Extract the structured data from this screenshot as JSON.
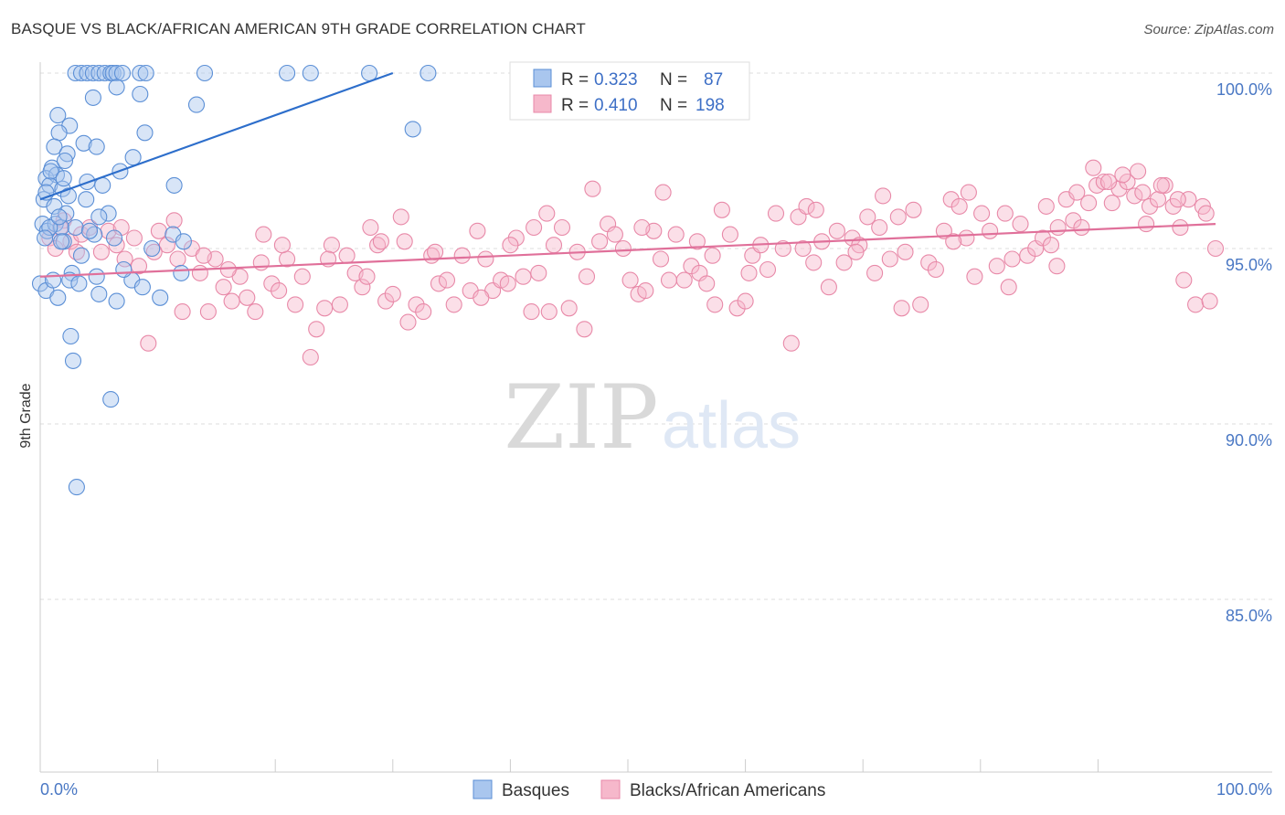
{
  "title": "BASQUE VS BLACK/AFRICAN AMERICAN 9TH GRADE CORRELATION CHART",
  "source": "Source: ZipAtlas.com",
  "watermark": {
    "zip": "ZIP",
    "atlas": "atlas"
  },
  "colors": {
    "basque_fill": "#a9c6ee",
    "basque_stroke": "#5b8fd6",
    "basque_line": "#2d6ecb",
    "black_fill": "#f6b8cb",
    "black_stroke": "#e889a8",
    "black_line": "#e0709a",
    "tick_label": "#4a78c4",
    "grid": "#dddddd"
  },
  "legend": {
    "rows": [
      {
        "r_label": "R = ",
        "r_value": "0.323",
        "n_label": "N = ",
        "n_value": "87"
      },
      {
        "r_label": "R = ",
        "r_value": "0.410",
        "n_label": "N = ",
        "n_value": "198"
      }
    ]
  },
  "chart_data": {
    "type": "scatter",
    "title": "BASQUE VS BLACK/AFRICAN AMERICAN 9TH GRADE CORRELATION CHART",
    "xlabel": "",
    "ylabel": "9th Grade",
    "xlim": [
      0,
      100
    ],
    "ylim": [
      80,
      100.5
    ],
    "x_tick_labels": [
      "0.0%",
      "100.0%"
    ],
    "y_ticks": [
      {
        "value": 100,
        "label": "100.0%"
      },
      {
        "value": 95,
        "label": "95.0%"
      },
      {
        "value": 90,
        "label": "90.0%"
      },
      {
        "value": 85,
        "label": "85.0%"
      }
    ],
    "grid": "horizontal dashed",
    "legend_placement": "top-center",
    "series": [
      {
        "name": "Basques",
        "r": 0.323,
        "n": 87,
        "trend": {
          "x": [
            0,
            30
          ],
          "y": [
            96.4,
            100.0
          ]
        },
        "points": [
          [
            3,
            100
          ],
          [
            3.5,
            100
          ],
          [
            4,
            100
          ],
          [
            4.5,
            100
          ],
          [
            5,
            100
          ],
          [
            5.5,
            100
          ],
          [
            6,
            100
          ],
          [
            6.2,
            100
          ],
          [
            6.5,
            100
          ],
          [
            7,
            100
          ],
          [
            8.5,
            100
          ],
          [
            9,
            100
          ],
          [
            14,
            100
          ],
          [
            21,
            100
          ],
          [
            23,
            100
          ],
          [
            28,
            100
          ],
          [
            33,
            100
          ],
          [
            1.5,
            98.8
          ],
          [
            2.5,
            98.5
          ],
          [
            4.5,
            99.3
          ],
          [
            6.5,
            99.6
          ],
          [
            8.5,
            99.4
          ],
          [
            13.3,
            99.1
          ],
          [
            1.6,
            98.3
          ],
          [
            3.7,
            98.0
          ],
          [
            8.9,
            98.3
          ],
          [
            31.7,
            98.4
          ],
          [
            1.2,
            97.9
          ],
          [
            2.3,
            97.7
          ],
          [
            4.8,
            97.9
          ],
          [
            7.9,
            97.6
          ],
          [
            1.0,
            97.3
          ],
          [
            2.1,
            97.5
          ],
          [
            0.5,
            97.0
          ],
          [
            1.4,
            97.1
          ],
          [
            0.8,
            96.8
          ],
          [
            1.9,
            96.7
          ],
          [
            2.4,
            96.5
          ],
          [
            5.3,
            96.8
          ],
          [
            11.4,
            96.8
          ],
          [
            0.3,
            96.4
          ],
          [
            1.2,
            96.2
          ],
          [
            5.8,
            96.0
          ],
          [
            0.2,
            95.7
          ],
          [
            0.6,
            95.5
          ],
          [
            1.3,
            95.7
          ],
          [
            1.8,
            95.6
          ],
          [
            4.6,
            95.4
          ],
          [
            11.3,
            95.4
          ],
          [
            2.0,
            95.2
          ],
          [
            0.8,
            95.6
          ],
          [
            3.0,
            95.6
          ],
          [
            1.8,
            95.2
          ],
          [
            0.4,
            95.3
          ],
          [
            12.2,
            95.2
          ],
          [
            2.7,
            94.3
          ],
          [
            4.8,
            94.2
          ],
          [
            2.5,
            94.1
          ],
          [
            3.3,
            94.0
          ],
          [
            7.8,
            94.1
          ],
          [
            8.7,
            93.9
          ],
          [
            12.0,
            94.3
          ],
          [
            0,
            94.0
          ],
          [
            0.5,
            93.8
          ],
          [
            1.5,
            93.6
          ],
          [
            5.0,
            93.7
          ],
          [
            6.5,
            93.5
          ],
          [
            10.2,
            93.6
          ],
          [
            2.6,
            92.5
          ],
          [
            2.8,
            91.8
          ],
          [
            6.0,
            90.7
          ],
          [
            3.1,
            88.2
          ],
          [
            3.9,
            96.4
          ],
          [
            2.2,
            96.0
          ],
          [
            5.0,
            95.9
          ],
          [
            0.9,
            97.2
          ],
          [
            4.0,
            96.9
          ],
          [
            6.3,
            95.3
          ],
          [
            9.5,
            95.0
          ],
          [
            1.1,
            94.1
          ],
          [
            7.1,
            94.4
          ],
          [
            3.5,
            94.8
          ],
          [
            2.0,
            97.0
          ],
          [
            4.2,
            95.5
          ],
          [
            1.6,
            95.9
          ],
          [
            0.5,
            96.6
          ],
          [
            6.8,
            97.2
          ]
        ]
      },
      {
        "name": "Blacks/African Americans",
        "r": 0.41,
        "n": 198,
        "trend": {
          "x": [
            0,
            100
          ],
          "y": [
            94.2,
            95.7
          ]
        },
        "points": [
          [
            0.8,
            95.3
          ],
          [
            1.3,
            95.0
          ],
          [
            2.0,
            95.8
          ],
          [
            2.6,
            95.2
          ],
          [
            3.5,
            95.4
          ],
          [
            4.2,
            95.6
          ],
          [
            5.2,
            94.9
          ],
          [
            5.8,
            95.5
          ],
          [
            6.5,
            95.1
          ],
          [
            7.2,
            94.7
          ],
          [
            8.0,
            95.3
          ],
          [
            8.4,
            94.5
          ],
          [
            9.2,
            92.3
          ],
          [
            10.1,
            95.5
          ],
          [
            10.8,
            95.1
          ],
          [
            11.4,
            95.8
          ],
          [
            12.1,
            93.2
          ],
          [
            12.9,
            95.0
          ],
          [
            13.6,
            94.3
          ],
          [
            14.3,
            93.2
          ],
          [
            14.9,
            94.7
          ],
          [
            15.6,
            93.9
          ],
          [
            16.3,
            93.5
          ],
          [
            17.0,
            94.2
          ],
          [
            17.6,
            93.6
          ],
          [
            18.3,
            93.2
          ],
          [
            19.0,
            95.4
          ],
          [
            19.7,
            94.0
          ],
          [
            20.3,
            93.8
          ],
          [
            21.0,
            94.7
          ],
          [
            21.7,
            93.4
          ],
          [
            22.3,
            94.2
          ],
          [
            23.0,
            91.9
          ],
          [
            23.5,
            92.7
          ],
          [
            24.2,
            93.3
          ],
          [
            24.8,
            95.1
          ],
          [
            25.5,
            93.4
          ],
          [
            26.1,
            94.8
          ],
          [
            26.8,
            94.3
          ],
          [
            27.4,
            93.9
          ],
          [
            28.1,
            95.6
          ],
          [
            28.7,
            95.1
          ],
          [
            29.4,
            93.5
          ],
          [
            30.0,
            93.7
          ],
          [
            30.7,
            95.9
          ],
          [
            31.3,
            92.9
          ],
          [
            32.0,
            93.4
          ],
          [
            32.6,
            93.2
          ],
          [
            33.3,
            94.8
          ],
          [
            33.9,
            94.0
          ],
          [
            34.6,
            94.1
          ],
          [
            35.2,
            93.4
          ],
          [
            35.9,
            94.8
          ],
          [
            36.6,
            93.8
          ],
          [
            37.2,
            95.5
          ],
          [
            37.9,
            94.7
          ],
          [
            38.5,
            93.8
          ],
          [
            39.2,
            94.1
          ],
          [
            39.8,
            94.0
          ],
          [
            40.5,
            95.3
          ],
          [
            41.1,
            94.2
          ],
          [
            41.8,
            93.2
          ],
          [
            42.4,
            94.3
          ],
          [
            43.1,
            96.0
          ],
          [
            43.7,
            95.1
          ],
          [
            44.4,
            95.6
          ],
          [
            45.0,
            93.3
          ],
          [
            45.7,
            94.9
          ],
          [
            46.3,
            92.7
          ],
          [
            47.0,
            96.7
          ],
          [
            47.6,
            95.2
          ],
          [
            48.3,
            95.7
          ],
          [
            48.9,
            95.4
          ],
          [
            49.6,
            95.0
          ],
          [
            50.2,
            94.1
          ],
          [
            50.9,
            93.7
          ],
          [
            51.5,
            93.8
          ],
          [
            52.2,
            95.5
          ],
          [
            52.8,
            94.7
          ],
          [
            53.5,
            94.1
          ],
          [
            54.1,
            95.4
          ],
          [
            54.8,
            94.1
          ],
          [
            55.4,
            94.5
          ],
          [
            56.1,
            94.3
          ],
          [
            56.7,
            94.0
          ],
          [
            57.4,
            93.4
          ],
          [
            58.0,
            96.1
          ],
          [
            58.7,
            95.4
          ],
          [
            59.3,
            93.3
          ],
          [
            60.0,
            93.5
          ],
          [
            60.6,
            94.8
          ],
          [
            61.3,
            95.1
          ],
          [
            61.9,
            94.4
          ],
          [
            62.6,
            96.0
          ],
          [
            63.2,
            95.0
          ],
          [
            63.9,
            92.3
          ],
          [
            64.5,
            95.9
          ],
          [
            65.2,
            96.2
          ],
          [
            65.8,
            94.6
          ],
          [
            66.5,
            95.2
          ],
          [
            67.1,
            93.9
          ],
          [
            67.8,
            95.5
          ],
          [
            68.4,
            94.6
          ],
          [
            69.1,
            95.3
          ],
          [
            69.7,
            95.1
          ],
          [
            70.4,
            95.9
          ],
          [
            71.0,
            94.3
          ],
          [
            71.7,
            96.5
          ],
          [
            72.3,
            94.7
          ],
          [
            73.0,
            95.9
          ],
          [
            73.6,
            94.9
          ],
          [
            74.3,
            96.1
          ],
          [
            74.9,
            93.4
          ],
          [
            75.6,
            94.6
          ],
          [
            76.2,
            94.4
          ],
          [
            76.9,
            95.5
          ],
          [
            77.5,
            96.4
          ],
          [
            78.2,
            96.2
          ],
          [
            78.8,
            95.3
          ],
          [
            79.5,
            94.2
          ],
          [
            80.1,
            96.0
          ],
          [
            80.8,
            95.5
          ],
          [
            81.4,
            94.5
          ],
          [
            82.1,
            96.0
          ],
          [
            82.7,
            94.7
          ],
          [
            83.4,
            95.7
          ],
          [
            84.0,
            94.8
          ],
          [
            84.7,
            95.0
          ],
          [
            85.3,
            95.3
          ],
          [
            86.0,
            95.1
          ],
          [
            86.6,
            95.6
          ],
          [
            87.3,
            96.4
          ],
          [
            87.9,
            95.8
          ],
          [
            88.6,
            95.6
          ],
          [
            89.2,
            96.3
          ],
          [
            89.9,
            96.8
          ],
          [
            90.5,
            96.9
          ],
          [
            91.2,
            96.3
          ],
          [
            91.8,
            96.7
          ],
          [
            92.5,
            96.9
          ],
          [
            93.1,
            96.5
          ],
          [
            93.8,
            96.6
          ],
          [
            94.4,
            96.2
          ],
          [
            95.1,
            96.4
          ],
          [
            95.7,
            96.8
          ],
          [
            96.4,
            96.2
          ],
          [
            97.0,
            95.6
          ],
          [
            97.7,
            96.4
          ],
          [
            98.3,
            93.4
          ],
          [
            98.9,
            96.2
          ],
          [
            99.5,
            93.5
          ],
          [
            100.0,
            95.0
          ],
          [
            1.7,
            95.6
          ],
          [
            6.9,
            95.6
          ],
          [
            11.7,
            94.7
          ],
          [
            16.0,
            94.4
          ],
          [
            20.6,
            95.1
          ],
          [
            24.5,
            94.7
          ],
          [
            29.0,
            95.2
          ],
          [
            33.6,
            94.9
          ],
          [
            37.5,
            93.6
          ],
          [
            42.0,
            95.6
          ],
          [
            46.5,
            94.2
          ],
          [
            51.2,
            95.6
          ],
          [
            55.9,
            95.2
          ],
          [
            60.3,
            94.3
          ],
          [
            64.9,
            95.0
          ],
          [
            69.4,
            94.9
          ],
          [
            73.3,
            93.3
          ],
          [
            77.7,
            95.2
          ],
          [
            82.4,
            93.9
          ],
          [
            86.5,
            94.5
          ],
          [
            90.9,
            96.9
          ],
          [
            94.1,
            95.7
          ],
          [
            97.3,
            94.1
          ],
          [
            99.2,
            96.0
          ],
          [
            13.9,
            94.8
          ],
          [
            27.8,
            94.2
          ],
          [
            43.3,
            93.2
          ],
          [
            57.2,
            94.8
          ],
          [
            71.4,
            95.6
          ],
          [
            85.6,
            96.2
          ],
          [
            92.1,
            97.1
          ],
          [
            96.8,
            96.4
          ],
          [
            3.1,
            94.9
          ],
          [
            9.7,
            94.9
          ],
          [
            18.8,
            94.6
          ],
          [
            31.0,
            95.2
          ],
          [
            40.0,
            95.1
          ],
          [
            53.0,
            96.6
          ],
          [
            66.0,
            96.1
          ],
          [
            79.0,
            96.6
          ],
          [
            88.2,
            96.6
          ],
          [
            95.4,
            96.8
          ],
          [
            89.6,
            97.3
          ],
          [
            93.4,
            97.2
          ]
        ]
      }
    ]
  }
}
